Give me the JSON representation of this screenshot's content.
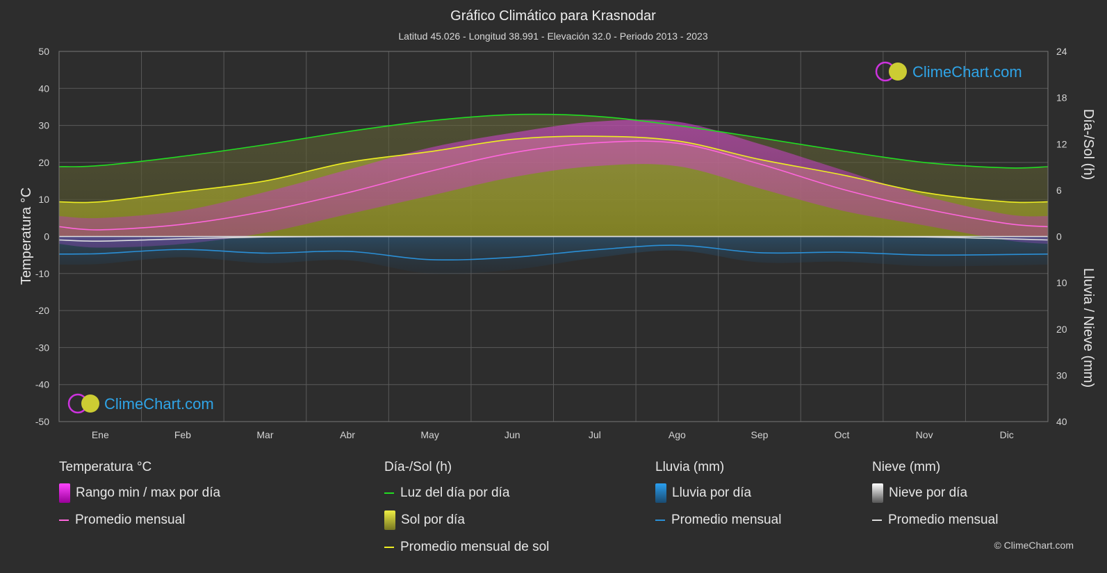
{
  "chart_data": {
    "type": "area",
    "title": "Gráfico Climático para Krasnodar",
    "subtitle": "Latitud 45.026 - Longitud 38.991 - Elevación 32.0 - Periodo 2013 - 2023",
    "categories": [
      "Ene",
      "Feb",
      "Mar",
      "Abr",
      "May",
      "Jun",
      "Jul",
      "Ago",
      "Sep",
      "Oct",
      "Nov",
      "Dic"
    ],
    "y_left": {
      "label": "Temperatura °C",
      "ylim": [
        -50,
        50
      ],
      "ticks": [
        "50",
        "40",
        "30",
        "20",
        "10",
        "0",
        "-10",
        "-20",
        "-30",
        "-40",
        "-50"
      ]
    },
    "y_right_top": {
      "label": "Día-/Sol (h)",
      "ylim": [
        0,
        24
      ],
      "ticks": [
        "24",
        "18",
        "12",
        "6",
        "0"
      ]
    },
    "y_right_bottom": {
      "label": "Lluvia / Nieve (mm)",
      "ylim": [
        0,
        40
      ],
      "ticks": [
        "0",
        "10",
        "20",
        "30",
        "40"
      ]
    },
    "series": [
      {
        "name": "Luz del día por día",
        "unit": "h",
        "color": "#22dd22",
        "values": [
          9.2,
          10.4,
          11.9,
          13.6,
          15.0,
          15.8,
          15.6,
          14.4,
          12.8,
          11.1,
          9.6,
          8.9
        ]
      },
      {
        "name": "Promedio mensual de sol",
        "unit": "h",
        "color": "#eeee22",
        "values": [
          4.5,
          5.8,
          7.2,
          9.6,
          11.0,
          12.6,
          13.0,
          12.4,
          10.0,
          8.0,
          5.7,
          4.5
        ]
      },
      {
        "name": "Promedio mensual",
        "group": "Temperatura °C",
        "unit": "°C",
        "color": "#ff66dd",
        "values": [
          1.8,
          3.3,
          6.8,
          11.8,
          17.6,
          22.6,
          25.3,
          25.2,
          19.6,
          12.8,
          7.5,
          3.5
        ]
      },
      {
        "name": "Promedio mensual",
        "group": "Lluvia (mm)",
        "unit": "mm",
        "color": "#2a8fd6",
        "values": [
          3.7,
          2.8,
          3.6,
          3.2,
          5.0,
          4.5,
          2.9,
          1.9,
          3.5,
          3.4,
          4.0,
          3.9
        ]
      },
      {
        "name": "Promedio mensual",
        "group": "Nieve (mm)",
        "unit": "mm",
        "color": "#dddddd",
        "values": [
          1.0,
          0.5,
          0.1,
          0.0,
          0.0,
          0.0,
          0.0,
          0.0,
          0.0,
          0.0,
          0.1,
          0.5
        ]
      }
    ],
    "ranges": {
      "temp_max": [
        5,
        7,
        12,
        18,
        24,
        28,
        31,
        31,
        25,
        18,
        11,
        6
      ],
      "temp_min": [
        -3,
        -2,
        1,
        6,
        11,
        16,
        19,
        19,
        13,
        7,
        3,
        -1
      ]
    },
    "grid": true
  },
  "legend": {
    "temperature": {
      "title": "Temperatura °C",
      "range_label": "Rango min / max por día",
      "avg_label": "Promedio mensual"
    },
    "sun": {
      "title": "Día-/Sol (h)",
      "daylight_label": "Luz del día por día",
      "sun_label": "Sol por día",
      "avg_label": "Promedio mensual de sol"
    },
    "rain": {
      "title": "Lluvia (mm)",
      "daily_label": "Lluvia por día",
      "avg_label": "Promedio mensual"
    },
    "snow": {
      "title": "Nieve (mm)",
      "daily_label": "Nieve por día",
      "avg_label": "Promedio mensual"
    }
  },
  "logo": {
    "text": "ClimeChart.com"
  },
  "copyright": "© ClimeChart.com",
  "colors": {
    "background": "#2d2d2d",
    "temp_range": "#cc22cc",
    "sun_fill": "#999922",
    "rain": "#2a8fd6",
    "snow": "#aaaaaa"
  }
}
